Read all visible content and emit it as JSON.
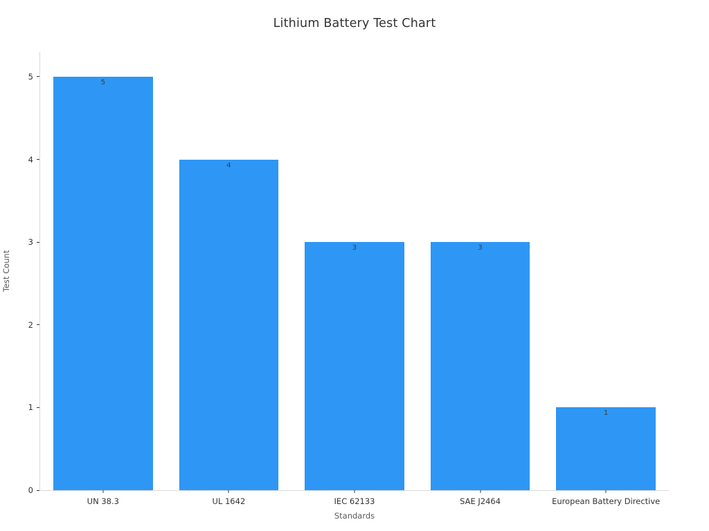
{
  "page_title": "Lithium Battery Test Chart",
  "chart_data": {
    "type": "bar",
    "title": "Lithium Battery Test Chart",
    "categories": [
      "UN 38.3",
      "UL 1642",
      "IEC 62133",
      "SAE J2464",
      "European Battery Directive"
    ],
    "values": [
      5,
      4,
      3,
      3,
      1
    ],
    "xlabel": "Standards",
    "ylabel": "Test Count",
    "ylim": [
      0,
      5.3
    ],
    "yticks": [
      0,
      1,
      2,
      3,
      4,
      5
    ],
    "grid": false,
    "legend": "none",
    "value_labels_shown": true,
    "bar_color": "#2e96f5",
    "axis_line_color": "#d9d9d9",
    "tick_color": "#333333",
    "label_color": "#333333",
    "axis_title_color": "#595959",
    "title_color": "#333333",
    "background_color": "#ffffff"
  }
}
